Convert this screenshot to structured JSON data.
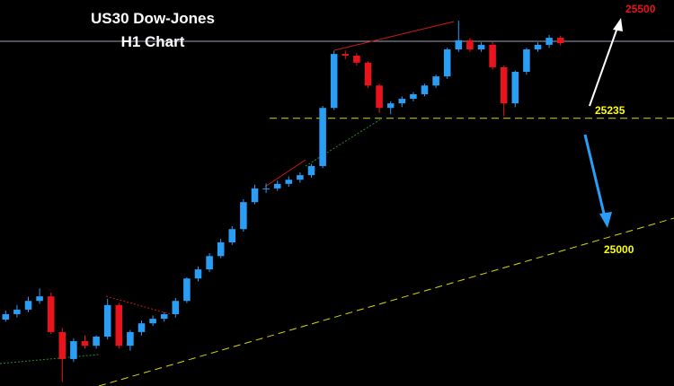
{
  "chart_data": {
    "type": "candlestick",
    "title": "US30 Dow-Jones",
    "subtitle": "H1 Chart",
    "ylim": [
      24590,
      25520
    ],
    "up_color": "#2a9df4",
    "down_color": "#e8141c",
    "open": [
      24750,
      24763,
      24774,
      24795,
      24806,
      24720,
      24655,
      24698,
      24687,
      24709,
      24785,
      24687,
      24720,
      24741,
      24752,
      24763,
      24795,
      24849,
      24871,
      24903,
      24936,
      24968,
      25033,
      25066,
      25066,
      25077,
      25087,
      25098,
      25120,
      25260,
      25390,
      25386,
      25369,
      25314,
      25260,
      25271,
      25282,
      25293,
      25314,
      25336,
      25401,
      25423,
      25401,
      25412,
      25358,
      25271,
      25347,
      25401,
      25412,
      25429
    ],
    "high": [
      24772,
      24785,
      24805,
      24825,
      24815,
      24730,
      24705,
      24712,
      24712,
      24800,
      24790,
      24725,
      24748,
      24760,
      24768,
      24802,
      24852,
      24878,
      24910,
      24945,
      24975,
      25040,
      25075,
      25078,
      25085,
      25095,
      25105,
      25125,
      25265,
      25398,
      25398,
      25392,
      25372,
      25318,
      25276,
      25288,
      25298,
      25318,
      25340,
      25405,
      25470,
      25428,
      25418,
      25420,
      25362,
      25350,
      25405,
      25418,
      25436,
      25434
    ],
    "low": [
      24745,
      24755,
      24768,
      24788,
      24715,
      24600,
      24648,
      24680,
      24680,
      24702,
      24680,
      24675,
      24712,
      24735,
      24745,
      24755,
      24790,
      24842,
      24865,
      24898,
      24930,
      24962,
      25028,
      25055,
      25060,
      25070,
      25080,
      25092,
      25115,
      25255,
      25378,
      25362,
      25308,
      25248,
      25245,
      25262,
      25276,
      25288,
      25308,
      25330,
      25395,
      25395,
      25395,
      25352,
      25240,
      25262,
      25340,
      25395,
      25405,
      25410
    ],
    "close": [
      24763,
      24774,
      24795,
      24806,
      24720,
      24655,
      24698,
      24687,
      24709,
      24785,
      24687,
      24720,
      24741,
      24752,
      24763,
      24795,
      24849,
      24871,
      24903,
      24936,
      24968,
      25033,
      25066,
      25066,
      25077,
      25087,
      25098,
      25120,
      25260,
      25390,
      25386,
      25369,
      25314,
      25260,
      25271,
      25282,
      25293,
      25314,
      25336,
      25401,
      25423,
      25401,
      25412,
      25358,
      25271,
      25347,
      25401,
      25412,
      25429,
      25416
    ],
    "target": 25500,
    "support": 25235,
    "trend_support": 25000
  }
}
